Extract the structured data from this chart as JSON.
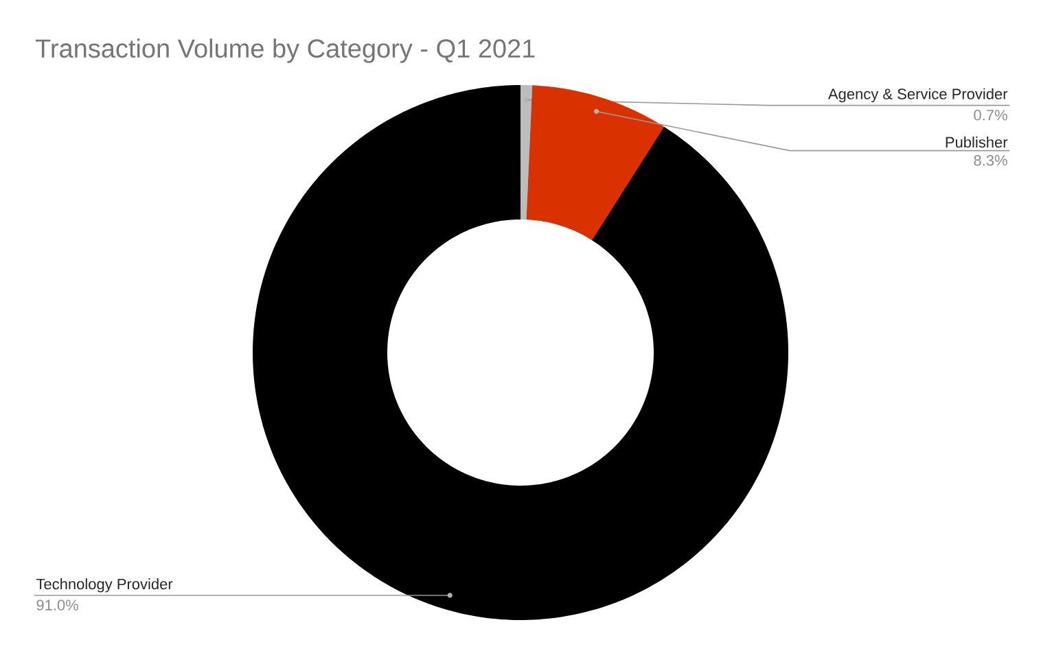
{
  "chart_data": {
    "type": "donut",
    "title": "Transaction Volume by Category - Q1 2021",
    "categories": [
      "Agency & Service Provider",
      "Publisher",
      "Technology Provider"
    ],
    "values": [
      0.7,
      8.3,
      91.0
    ],
    "value_labels": [
      "0.7%",
      "8.3%",
      "91.0%"
    ],
    "colors": [
      "#bdbdbd",
      "#d93100",
      "#000000"
    ]
  }
}
